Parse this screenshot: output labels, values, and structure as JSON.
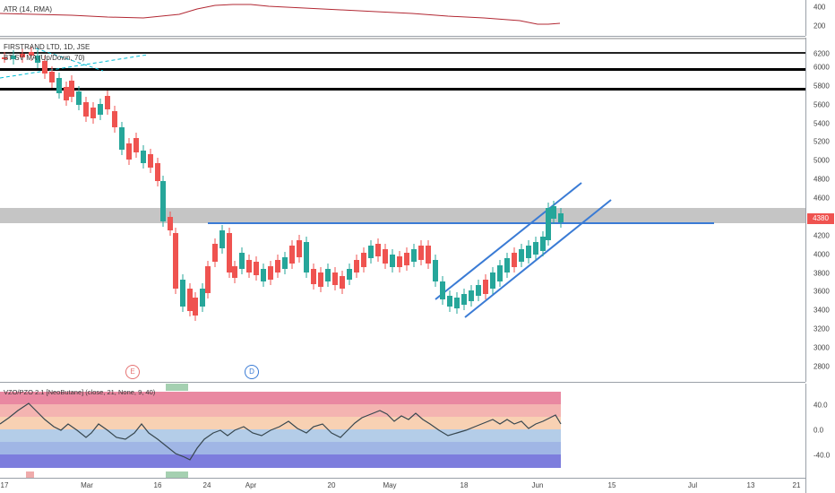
{
  "atr": {
    "title": "ATR (14, RMA)",
    "axis_ticks": [
      "400",
      "200"
    ],
    "line_color": "#b22833"
  },
  "main": {
    "legend_symbol": "FIRSTRAND LTD, 1D, JSE",
    "legend_indicator": "BT SV MA (Up/Down, 70)",
    "axis_ticks": [
      "6200",
      "6000",
      "5800",
      "5600",
      "5400",
      "5200",
      "5000",
      "4800",
      "4600",
      "4400",
      "4200",
      "4000",
      "3800",
      "3600",
      "3400",
      "3200",
      "3000",
      "2800"
    ],
    "last_price": "4380",
    "last_price_color": "#ef5350",
    "up_color": "#26a69a",
    "down_color": "#ef5350",
    "trendline_color": "#3a7bd5",
    "resistance_zone_color": "#9e9e9e",
    "events": [
      {
        "letter": "E",
        "color": "#e57373"
      },
      {
        "letter": "D",
        "color": "#3a7bd5"
      }
    ]
  },
  "oscillator": {
    "title": "VZO/PZO 2.1 [NeoButane] (close, 21, None, 9, 40)",
    "axis_ticks": [
      "40.0",
      "0.0",
      "-40.0"
    ],
    "line_color": "#37474f"
  },
  "time_axis": {
    "labels": [
      "17",
      "Mar",
      "16",
      "24",
      "Apr",
      "20",
      "May",
      "18",
      "Jun",
      "15",
      "Jul",
      "13",
      "21"
    ]
  }
}
